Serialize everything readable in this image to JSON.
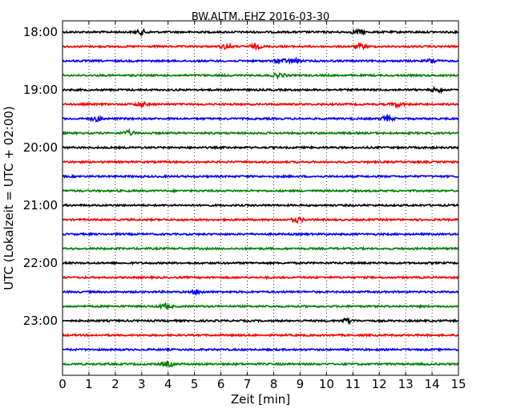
{
  "chart_data": {
    "type": "line",
    "title": "BW.ALTM..EHZ 2016-03-30",
    "xlabel": "Zeit  [min]",
    "ylabel": "UTC (Lokalzeit = UTC + 02:00)",
    "xlim": [
      0,
      15
    ],
    "x_ticks": [
      "0",
      "1",
      "2",
      "3",
      "4",
      "5",
      "6",
      "7",
      "8",
      "9",
      "10",
      "11",
      "12",
      "13",
      "14",
      "15"
    ],
    "y_tick_labels": [
      "18:00",
      "19:00",
      "20:00",
      "21:00",
      "22:00",
      "23:00"
    ],
    "grid": "vertical-dotted",
    "trace_colors": [
      "#000000",
      "#ff0000",
      "#0000ff",
      "#008000"
    ],
    "traces": [
      {
        "start": "18:00",
        "color": "#000000",
        "bursts": [
          3.0,
          11.2
        ]
      },
      {
        "start": "18:15",
        "color": "#ff0000",
        "bursts": [
          6.2,
          7.3,
          11.3
        ]
      },
      {
        "start": "18:30",
        "color": "#0000ff",
        "bursts": [
          8.3,
          8.8,
          14.0
        ]
      },
      {
        "start": "18:45",
        "color": "#008000",
        "bursts": [
          8.2
        ]
      },
      {
        "start": "19:00",
        "color": "#000000",
        "bursts": [
          14.2
        ]
      },
      {
        "start": "19:15",
        "color": "#ff0000",
        "bursts": [
          3.0,
          12.7
        ]
      },
      {
        "start": "19:30",
        "color": "#0000ff",
        "bursts": [
          1.3,
          12.3
        ]
      },
      {
        "start": "19:45",
        "color": "#008000",
        "bursts": [
          2.5
        ]
      },
      {
        "start": "20:00",
        "color": "#000000",
        "bursts": []
      },
      {
        "start": "20:15",
        "color": "#ff0000",
        "bursts": []
      },
      {
        "start": "20:30",
        "color": "#0000ff",
        "bursts": []
      },
      {
        "start": "20:45",
        "color": "#008000",
        "bursts": []
      },
      {
        "start": "21:00",
        "color": "#000000",
        "bursts": []
      },
      {
        "start": "21:15",
        "color": "#ff0000",
        "bursts": [
          8.9
        ]
      },
      {
        "start": "21:30",
        "color": "#0000ff",
        "bursts": []
      },
      {
        "start": "21:45",
        "color": "#008000",
        "bursts": []
      },
      {
        "start": "22:00",
        "color": "#000000",
        "bursts": []
      },
      {
        "start": "22:15",
        "color": "#ff0000",
        "bursts": []
      },
      {
        "start": "22:30",
        "color": "#0000ff",
        "bursts": [
          5.1
        ]
      },
      {
        "start": "22:45",
        "color": "#008000",
        "bursts": [
          3.9
        ]
      },
      {
        "start": "23:00",
        "color": "#000000",
        "bursts": [
          10.8
        ]
      },
      {
        "start": "23:15",
        "color": "#ff0000",
        "bursts": []
      },
      {
        "start": "23:30",
        "color": "#0000ff",
        "bursts": []
      },
      {
        "start": "23:45",
        "color": "#008000",
        "bursts": [
          4.0
        ]
      }
    ]
  }
}
